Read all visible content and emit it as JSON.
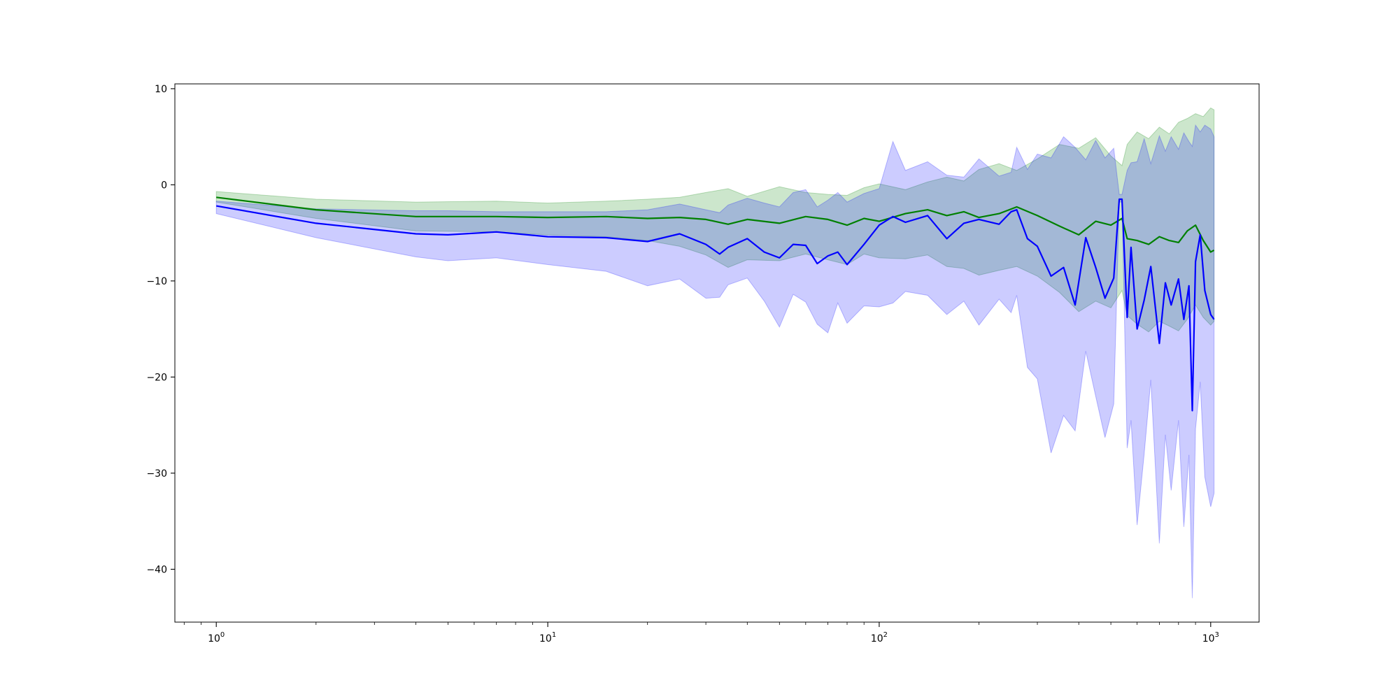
{
  "chart_data": {
    "type": "line",
    "title": "",
    "xlabel": "",
    "ylabel": "",
    "xscale": "log",
    "xlim": [
      0.75,
      1400
    ],
    "ylim": [
      -45.5,
      10.5
    ],
    "grid": false,
    "legend": "none",
    "x_ticks": [
      {
        "value": 1,
        "base": "10",
        "exp": "0"
      },
      {
        "value": 10,
        "base": "10",
        "exp": "1"
      },
      {
        "value": 100,
        "base": "10",
        "exp": "2"
      },
      {
        "value": 1000,
        "base": "10",
        "exp": "3"
      }
    ],
    "y_ticks": [
      {
        "value": 10,
        "label": "10"
      },
      {
        "value": 0,
        "label": "0"
      },
      {
        "value": -10,
        "label": "−10"
      },
      {
        "value": -20,
        "label": "−20"
      },
      {
        "value": -30,
        "label": "−30"
      },
      {
        "value": -40,
        "label": "−40"
      }
    ],
    "series": [
      {
        "color": "#008000",
        "band_color": "#008000",
        "band_opacity": 0.2,
        "x": [
          1,
          2,
          4,
          7,
          10,
          15,
          20,
          25,
          30,
          35,
          40,
          50,
          60,
          70,
          80,
          90,
          100,
          120,
          140,
          160,
          180,
          200,
          230,
          260,
          300,
          350,
          400,
          450,
          500,
          540,
          560,
          600,
          650,
          700,
          750,
          800,
          850,
          900,
          950,
          1000,
          1024
        ],
        "y": [
          -1.3,
          -2.6,
          -3.3,
          -3.3,
          -3.4,
          -3.3,
          -3.5,
          -3.4,
          -3.6,
          -4.1,
          -3.6,
          -4.0,
          -3.3,
          -3.6,
          -4.2,
          -3.5,
          -3.8,
          -3.0,
          -2.6,
          -3.2,
          -2.8,
          -3.4,
          -3.0,
          -2.3,
          -3.2,
          -4.3,
          -5.2,
          -3.8,
          -4.2,
          -3.5,
          -5.6,
          -5.8,
          -6.2,
          -5.4,
          -5.8,
          -6.0,
          -4.8,
          -4.2,
          -5.8,
          -7.0,
          -6.8
        ],
        "upper": [
          -0.7,
          -1.5,
          -1.8,
          -1.7,
          -1.9,
          -1.7,
          -1.5,
          -1.3,
          -0.8,
          -0.4,
          -1.2,
          -0.2,
          -0.8,
          -1.0,
          -1.1,
          -0.3,
          0.1,
          -0.5,
          0.3,
          0.8,
          0.4,
          1.6,
          2.2,
          1.5,
          2.7,
          4.2,
          3.8,
          4.9,
          3.0,
          2.0,
          4.2,
          5.5,
          4.8,
          6.0,
          5.3,
          6.5,
          6.9,
          7.4,
          7.1,
          8.0,
          7.8
        ],
        "lower": [
          -1.8,
          -3.5,
          -4.8,
          -4.9,
          -5.2,
          -5.4,
          -5.8,
          -6.4,
          -7.3,
          -8.6,
          -7.8,
          -7.9,
          -7.2,
          -7.8,
          -8.3,
          -7.2,
          -7.6,
          -7.7,
          -7.3,
          -8.5,
          -8.7,
          -9.4,
          -8.9,
          -8.5,
          -9.5,
          -11.2,
          -13.2,
          -12.1,
          -12.8,
          -11.0,
          -13.6,
          -14.5,
          -15.3,
          -14.2,
          -14.7,
          -15.2,
          -14.0,
          -12.5,
          -13.8,
          -14.6,
          -14.2
        ]
      },
      {
        "color": "#0000ff",
        "band_color": "#0000ff",
        "band_opacity": 0.2,
        "x": [
          1,
          2,
          4,
          5,
          7,
          10,
          15,
          20,
          25,
          30,
          33,
          35,
          40,
          45,
          50,
          55,
          60,
          65,
          70,
          75,
          80,
          90,
          100,
          110,
          120,
          140,
          160,
          180,
          200,
          230,
          250,
          260,
          280,
          300,
          330,
          360,
          390,
          420,
          450,
          480,
          510,
          530,
          540,
          560,
          575,
          600,
          630,
          660,
          700,
          730,
          760,
          800,
          830,
          860,
          880,
          900,
          930,
          960,
          1000,
          1024
        ],
        "y": [
          -2.2,
          -4.0,
          -5.1,
          -5.2,
          -4.9,
          -5.4,
          -5.5,
          -5.9,
          -5.1,
          -6.2,
          -7.2,
          -6.5,
          -5.6,
          -7.0,
          -7.6,
          -6.2,
          -6.3,
          -8.2,
          -7.4,
          -7.0,
          -8.3,
          -6.2,
          -4.2,
          -3.3,
          -3.9,
          -3.2,
          -5.6,
          -4.0,
          -3.6,
          -4.1,
          -2.8,
          -2.6,
          -5.6,
          -6.4,
          -9.5,
          -8.6,
          -12.5,
          -5.5,
          -8.6,
          -11.8,
          -9.7,
          -1.5,
          -1.5,
          -13.8,
          -6.5,
          -15.0,
          -12.0,
          -8.5,
          -16.5,
          -10.2,
          -12.5,
          -9.8,
          -14.0,
          -10.5,
          -23.5,
          -8.0,
          -5.2,
          -11.0,
          -13.5,
          -14.0
        ],
        "upper": [
          -1.7,
          -2.5,
          -2.7,
          -2.7,
          -2.8,
          -2.8,
          -2.8,
          -2.6,
          -2.0,
          -2.6,
          -2.9,
          -2.1,
          -1.4,
          -1.9,
          -2.3,
          -0.8,
          -0.5,
          -2.3,
          -1.6,
          -0.8,
          -1.8,
          -0.9,
          -0.4,
          4.5,
          1.5,
          2.4,
          1.0,
          0.8,
          2.7,
          0.9,
          1.3,
          3.9,
          1.6,
          3.2,
          2.8,
          5.0,
          3.9,
          2.6,
          4.6,
          2.8,
          3.8,
          -1.0,
          -1.0,
          1.5,
          2.3,
          2.4,
          4.8,
          2.2,
          5.1,
          3.5,
          5.0,
          3.7,
          5.4,
          4.5,
          4.0,
          6.2,
          5.5,
          6.2,
          5.8,
          5.0
        ],
        "lower": [
          -3.0,
          -5.5,
          -7.5,
          -7.9,
          -7.6,
          -8.3,
          -9.0,
          -10.5,
          -9.8,
          -11.8,
          -11.7,
          -10.4,
          -9.7,
          -12.1,
          -14.8,
          -11.4,
          -12.2,
          -14.5,
          -15.4,
          -12.3,
          -14.4,
          -12.6,
          -12.7,
          -12.3,
          -11.1,
          -11.5,
          -13.5,
          -12.1,
          -14.6,
          -11.9,
          -13.3,
          -11.5,
          -19.0,
          -20.2,
          -27.9,
          -24.0,
          -25.6,
          -17.3,
          -22.0,
          -26.3,
          -22.8,
          -1.8,
          -1.8,
          -27.4,
          -24.5,
          -35.4,
          -28.0,
          -20.3,
          -37.3,
          -26.0,
          -31.8,
          -24.5,
          -35.6,
          -28.1,
          -43.0,
          -25.4,
          -20.5,
          -30.4,
          -33.5,
          -32.1
        ]
      }
    ]
  }
}
